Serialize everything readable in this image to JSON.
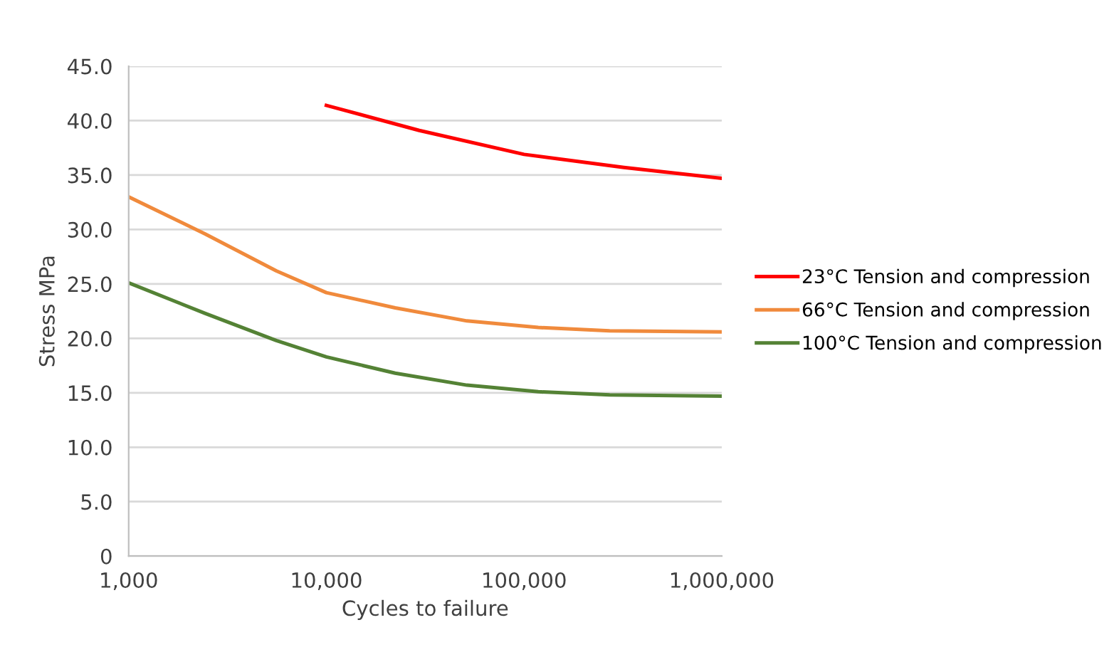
{
  "chart_data": {
    "type": "line",
    "xlabel": "Cycles to failure",
    "ylabel": "Stress MPa",
    "series": [
      {
        "name": "23°C Tension and compression",
        "color": "#ff0000",
        "x": [
          10000,
          29500,
          100000,
          320000,
          1000000
        ],
        "values": [
          41.4,
          39.1,
          36.9,
          35.7,
          34.7
        ]
      },
      {
        "name": "66°C Tension and compression",
        "color": "#f08a3c",
        "x": [
          1000,
          2430,
          5580,
          10000,
          22300,
          51400,
          118000,
          271000,
          1000000
        ],
        "values": [
          33.0,
          29.6,
          26.2,
          24.2,
          22.8,
          21.6,
          21.0,
          20.7,
          20.6
        ]
      },
      {
        "name": "100°C Tension and compression",
        "color": "#548235",
        "x": [
          1000,
          2430,
          5580,
          10000,
          22300,
          51400,
          118000,
          271000,
          1000000
        ],
        "values": [
          25.1,
          22.3,
          19.8,
          18.3,
          16.8,
          15.7,
          15.1,
          14.8,
          14.7
        ]
      }
    ],
    "log": "x",
    "xlim": [
      1000,
      1000000
    ],
    "xticks": [
      {
        "value": 1000,
        "label": "1,000"
      },
      {
        "value": 10000,
        "label": "10,000"
      },
      {
        "value": 100000,
        "label": "100,000"
      },
      {
        "value": 1000000,
        "label": "1,000,000"
      }
    ],
    "ylim": [
      0,
      45
    ],
    "yticks": [
      0,
      {
        "value": 5,
        "label": "5.0"
      },
      {
        "value": 10,
        "label": "10.0"
      },
      {
        "value": 15,
        "label": "15.0"
      },
      {
        "value": 20,
        "label": "20.0"
      },
      {
        "value": 25,
        "label": "25.0"
      },
      {
        "value": 30,
        "label": "30.0"
      },
      {
        "value": 35,
        "label": "35.0"
      },
      {
        "value": 40,
        "label": "40.0"
      },
      {
        "value": 45,
        "label": "45.0"
      }
    ],
    "grid": "y",
    "legend": "right",
    "marker": "none",
    "line_style": "solid"
  }
}
